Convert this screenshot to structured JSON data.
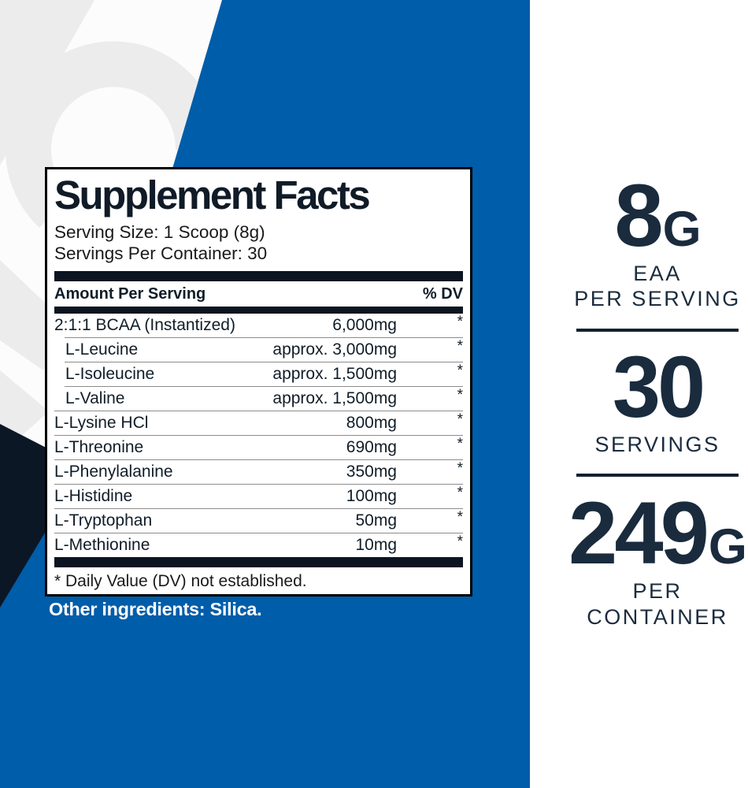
{
  "colors": {
    "blue": "#005DA9",
    "navy_shape": "#0C1725",
    "panel_ink": "#111D28",
    "glyph_grey": "#ECECEC",
    "white": "#FFFFFF"
  },
  "panel": {
    "title": "Supplement Facts",
    "serving_size": "Serving Size: 1 Scoop (8g)",
    "servings_per_container": "Servings Per Container: 30",
    "header": {
      "amount": "Amount Per Serving",
      "dv": "% DV"
    },
    "rows": [
      {
        "name": "2:1:1 BCAA (Instantized)",
        "amount": "6,000mg",
        "dv": "*",
        "indent": false
      },
      {
        "name": "L-Leucine",
        "amount": "approx. 3,000mg",
        "dv": "*",
        "indent": true
      },
      {
        "name": "L-Isoleucine",
        "amount": "approx. 1,500mg",
        "dv": "*",
        "indent": true
      },
      {
        "name": "L-Valine",
        "amount": "approx. 1,500mg",
        "dv": "*",
        "indent": true
      },
      {
        "name": "L-Lysine HCl",
        "amount": "800mg",
        "dv": "*",
        "indent": false
      },
      {
        "name": "L-Threonine",
        "amount": "690mg",
        "dv": "*",
        "indent": false
      },
      {
        "name": "L-Phenylalanine",
        "amount": "350mg",
        "dv": "*",
        "indent": false
      },
      {
        "name": "L-Histidine",
        "amount": "100mg",
        "dv": "*",
        "indent": false
      },
      {
        "name": "L-Tryptophan",
        "amount": "50mg",
        "dv": "*",
        "indent": false
      },
      {
        "name": "L-Methionine",
        "amount": "10mg",
        "dv": "*",
        "indent": false
      }
    ],
    "footnote": "* Daily Value (DV) not established."
  },
  "other_ingredients": "Other ingredients: Silica.",
  "stats": [
    {
      "value": "8",
      "unit": "G",
      "lines": [
        "EAA",
        "PER SERVING"
      ]
    },
    {
      "value": "30",
      "unit": "",
      "lines": [
        "SERVINGS"
      ]
    },
    {
      "value": "249",
      "unit": "G",
      "lines": [
        "PER CONTAINER"
      ]
    }
  ]
}
